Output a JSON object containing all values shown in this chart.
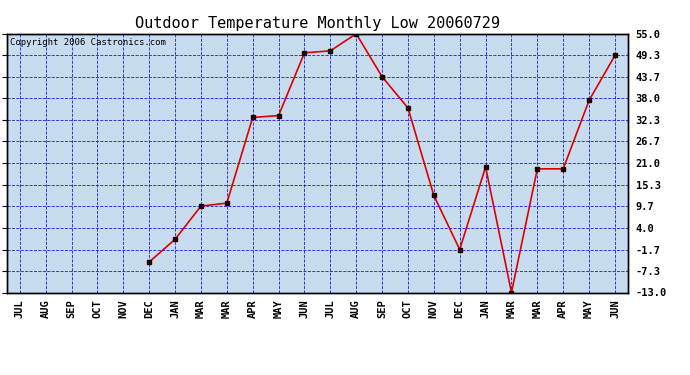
{
  "title": "Outdoor Temperature Monthly Low 20060729",
  "copyright_text": "Copyright 2006 Castronics.com",
  "x_labels": [
    "JUL",
    "AUG",
    "SEP",
    "OCT",
    "NOV",
    "DEC",
    "JAN",
    "MAR",
    "MAR",
    "APR",
    "MAY",
    "JUN",
    "JUL",
    "AUG",
    "SEP",
    "OCT",
    "NOV",
    "DEC",
    "JAN",
    "MAR",
    "MAR",
    "APR",
    "MAY",
    "JUN"
  ],
  "y_values": [
    null,
    null,
    null,
    null,
    null,
    -5.0,
    1.0,
    9.7,
    10.5,
    33.0,
    33.5,
    50.0,
    50.5,
    55.0,
    43.7,
    35.5,
    12.5,
    -1.7,
    20.0,
    -13.0,
    19.5,
    19.5,
    37.5,
    49.3
  ],
  "y_min": -13.0,
  "y_max": 55.0,
  "y_ticks": [
    55.0,
    49.3,
    43.7,
    38.0,
    32.3,
    26.7,
    21.0,
    15.3,
    9.7,
    4.0,
    -1.7,
    -7.3,
    -13.0
  ],
  "line_color": "#dd0000",
  "marker_color": "#220000",
  "bg_color": "#c8dcf0",
  "grid_major_color": "#0000cc",
  "grid_minor_color": "#8888cc",
  "border_color": "#000000",
  "title_fontsize": 11,
  "tick_fontsize": 7.5,
  "copyright_fontsize": 6.5
}
